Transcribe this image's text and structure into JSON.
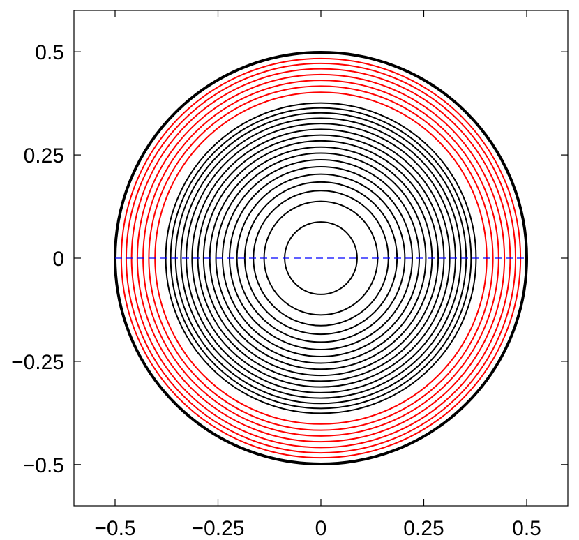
{
  "chart_data": {
    "type": "line",
    "title": "",
    "xlabel": "",
    "ylabel": "",
    "xlim": [
      -0.6,
      0.6
    ],
    "ylim": [
      -0.6,
      0.6
    ],
    "x_ticks": [
      {
        "value": -0.5,
        "label": "−0.5"
      },
      {
        "value": -0.25,
        "label": "−0.25"
      },
      {
        "value": 0,
        "label": "0"
      },
      {
        "value": 0.25,
        "label": "0.25"
      },
      {
        "value": 0.5,
        "label": "0.5"
      }
    ],
    "y_ticks": [
      {
        "value": 0.5,
        "label": "0.5"
      },
      {
        "value": 0.25,
        "label": "0.25"
      },
      {
        "value": 0,
        "label": "0"
      },
      {
        "value": -0.25,
        "label": "−0.25"
      },
      {
        "value": -0.5,
        "label": "−0.5"
      }
    ],
    "grid": false,
    "boundary_circle": {
      "center": [
        0,
        0
      ],
      "radius": 0.5,
      "color": "#000000"
    },
    "series": [
      {
        "color": "#000000",
        "center": [
          0,
          0
        ],
        "radii": [
          0.088,
          0.138,
          0.164,
          0.185,
          0.204,
          0.222,
          0.239,
          0.255,
          0.27,
          0.285,
          0.299,
          0.313,
          0.327,
          0.34,
          0.353,
          0.365,
          0.377
        ]
      },
      {
        "color": "#ff0000",
        "center": [
          0,
          0
        ],
        "radii": [
          0.403,
          0.418,
          0.432,
          0.446,
          0.46,
          0.473,
          0.485
        ]
      }
    ],
    "reference_line": {
      "x": [
        -0.5,
        0.5
      ],
      "y": [
        0,
        0
      ],
      "color": "#0000ff",
      "style": "dashed"
    }
  }
}
